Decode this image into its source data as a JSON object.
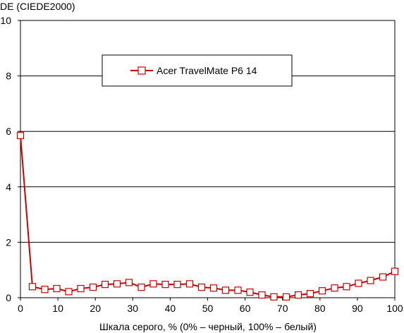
{
  "chart_data": {
    "type": "line",
    "ylabel": "DE (CIEDE2000)",
    "xlabel": "Шкала серого, % (0% – черный, 100% – белый)",
    "xlim": [
      0,
      100
    ],
    "ylim": [
      0,
      10
    ],
    "xticks": [
      0,
      10,
      20,
      30,
      40,
      50,
      60,
      70,
      80,
      90,
      100
    ],
    "yticks": [
      0,
      2,
      4,
      6,
      8,
      10
    ],
    "grid": "horizontal",
    "legend_position": "top-center",
    "series": [
      {
        "name": "Acer TravelMate P6 14",
        "color": "#cc0000",
        "marker": "square",
        "x": [
          0,
          3.2,
          6.5,
          9.7,
          12.9,
          16.1,
          19.4,
          22.6,
          25.8,
          29.0,
          32.3,
          35.5,
          38.7,
          41.9,
          45.2,
          48.4,
          51.6,
          54.8,
          58.1,
          61.3,
          64.5,
          67.7,
          71.0,
          74.2,
          77.4,
          80.6,
          83.9,
          87.1,
          90.3,
          93.5,
          96.8,
          100
        ],
        "y": [
          5.85,
          0.4,
          0.3,
          0.33,
          0.22,
          0.33,
          0.38,
          0.48,
          0.5,
          0.55,
          0.38,
          0.5,
          0.48,
          0.48,
          0.5,
          0.38,
          0.35,
          0.27,
          0.27,
          0.2,
          0.1,
          0.03,
          0.03,
          0.1,
          0.15,
          0.25,
          0.35,
          0.4,
          0.52,
          0.62,
          0.75,
          0.95
        ]
      }
    ]
  }
}
